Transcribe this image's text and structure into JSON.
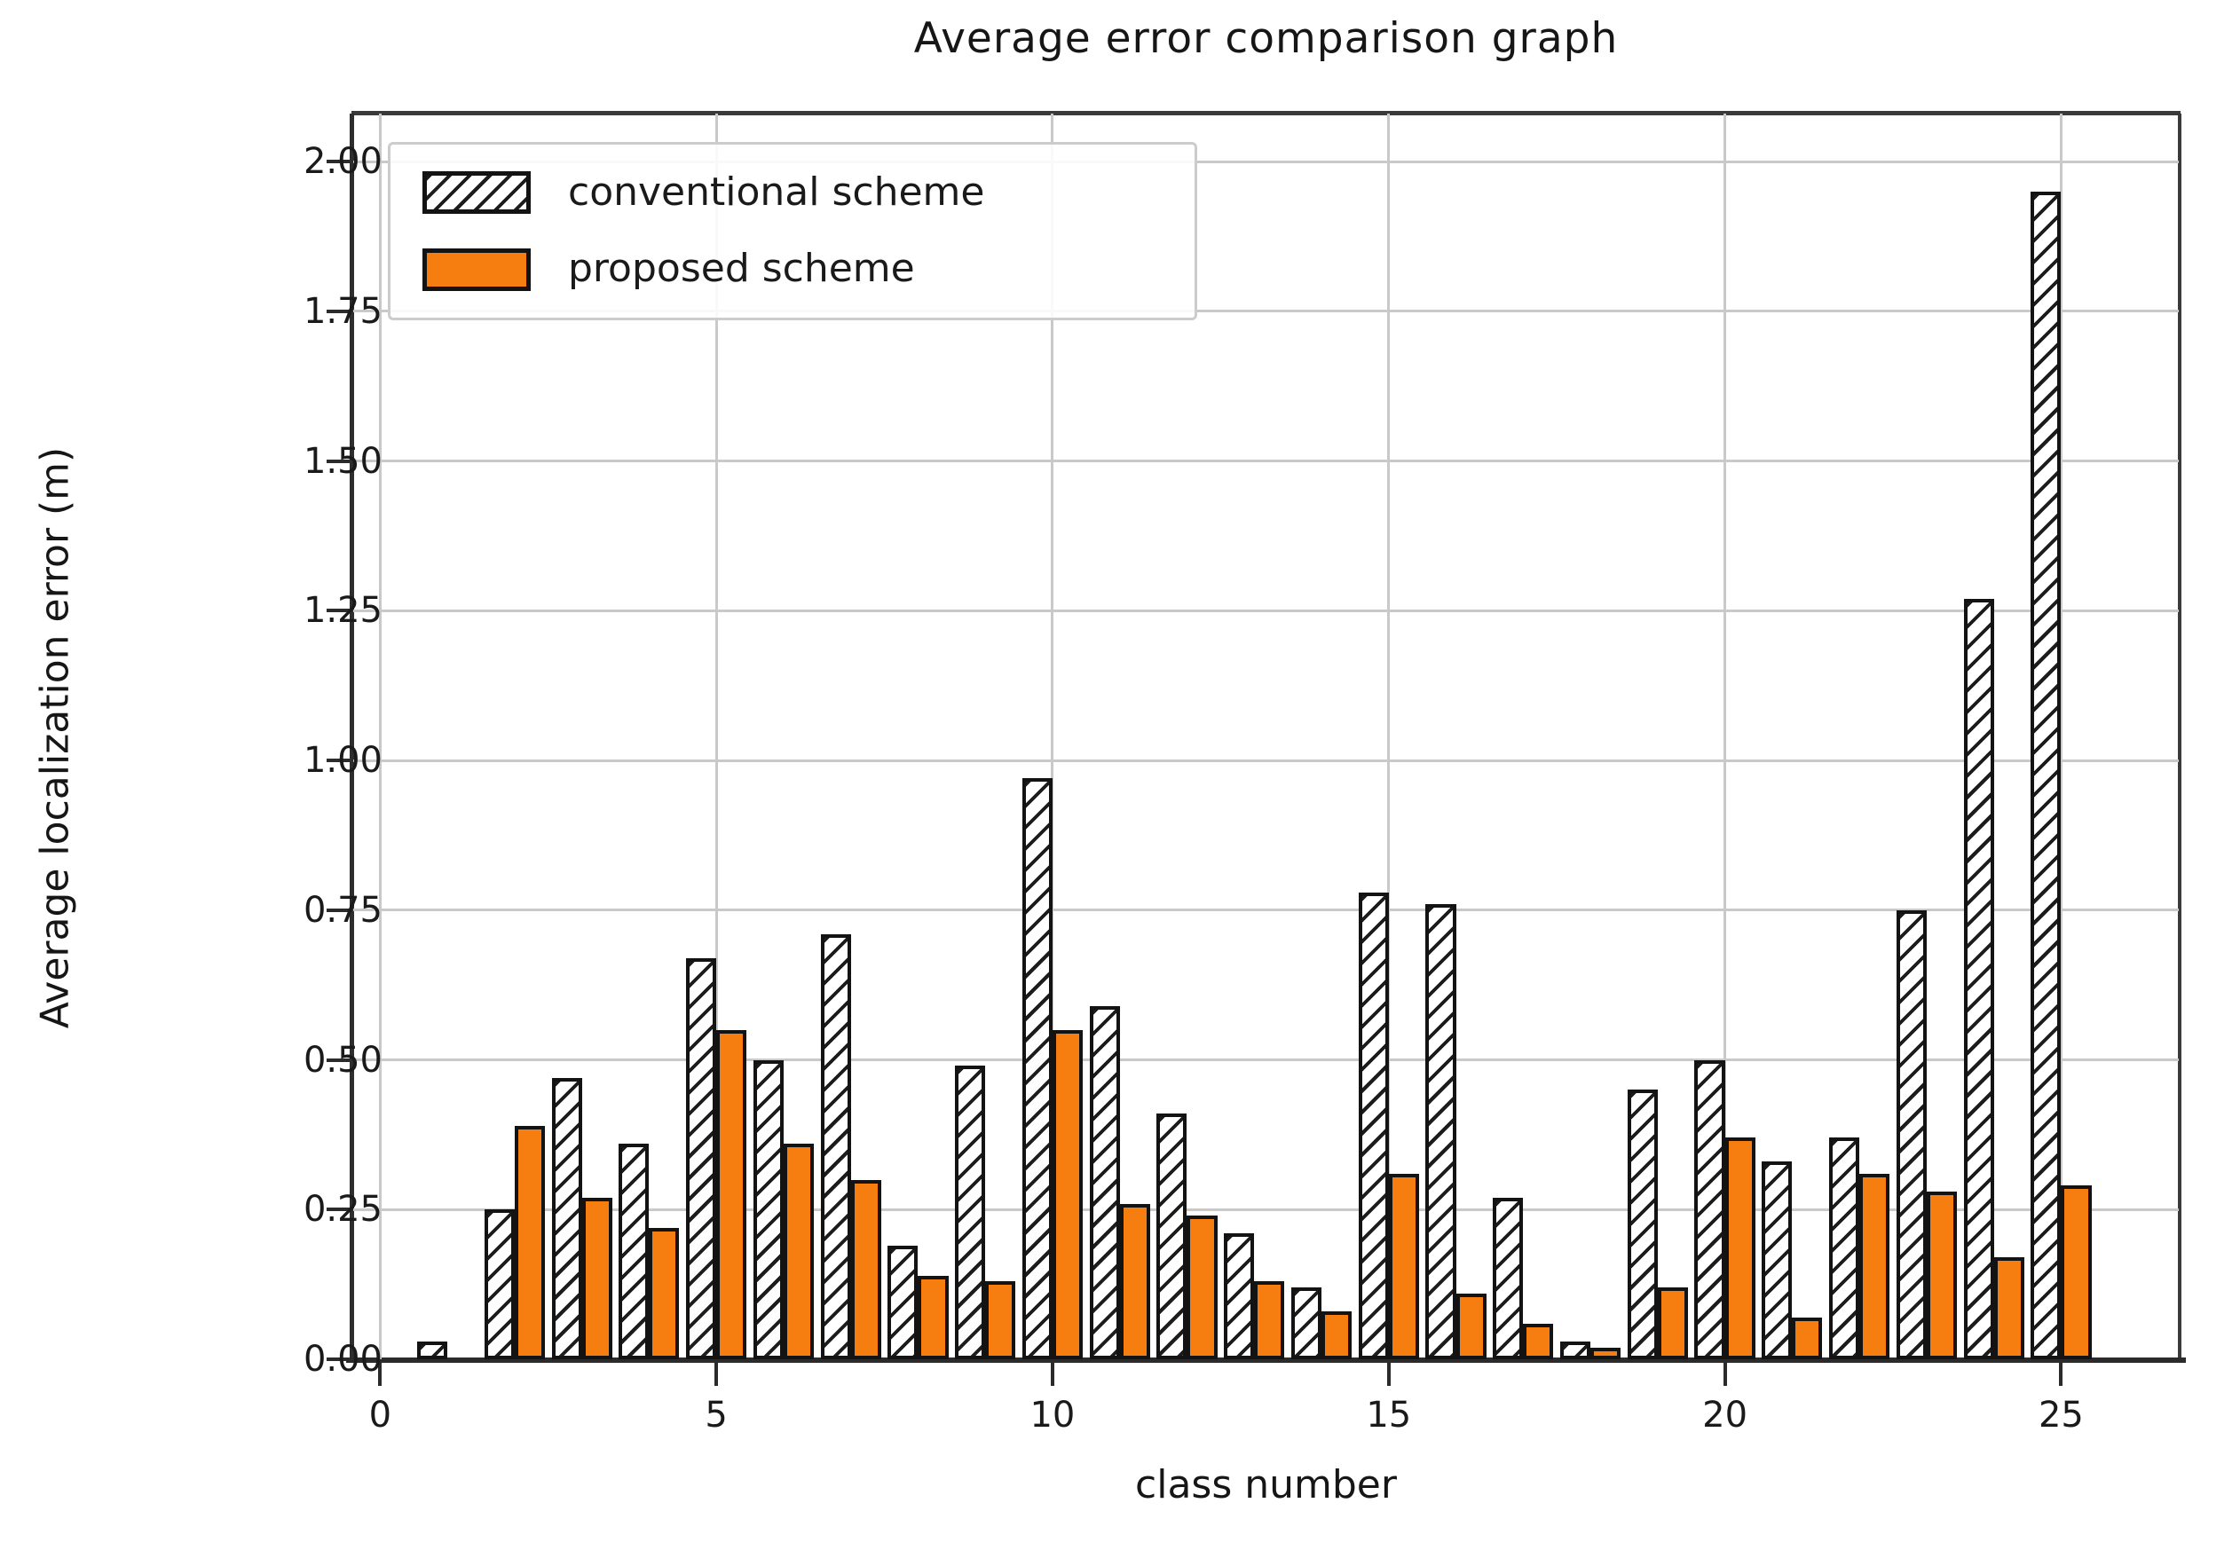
{
  "title": "Average error comparison graph",
  "legend": {
    "items": [
      {
        "label": "conventional scheme",
        "style": "hatched"
      },
      {
        "label": "proposed scheme",
        "style": "solid"
      }
    ]
  },
  "colors": {
    "proposed_orange": "#f67e10",
    "bar_edge": "#131313",
    "grid": "#c9c9c9",
    "spine": "#3a3a3a",
    "text": "#1a1a1a"
  },
  "chart_data": {
    "type": "bar",
    "title": "Average error comparison graph",
    "xlabel": "class number",
    "ylabel": "Average localization error (m)",
    "categories": [
      1,
      2,
      3,
      4,
      5,
      6,
      7,
      8,
      9,
      10,
      11,
      12,
      13,
      14,
      15,
      16,
      17,
      18,
      19,
      20,
      21,
      22,
      23,
      24,
      25
    ],
    "series": [
      {
        "name": "conventional scheme",
        "style": "hatched",
        "values": [
          0.03,
          0.25,
          0.47,
          0.36,
          0.67,
          0.5,
          0.71,
          0.19,
          0.49,
          0.97,
          0.59,
          0.41,
          0.21,
          0.12,
          0.78,
          0.76,
          0.27,
          0.03,
          0.45,
          0.5,
          0.33,
          0.37,
          0.75,
          1.27,
          1.95
        ]
      },
      {
        "name": "proposed scheme",
        "style": "solid",
        "values": [
          0.0,
          0.39,
          0.27,
          0.22,
          0.55,
          0.36,
          0.3,
          0.14,
          0.13,
          0.55,
          0.26,
          0.24,
          0.13,
          0.08,
          0.31,
          0.11,
          0.06,
          0.02,
          0.12,
          0.37,
          0.07,
          0.31,
          0.28,
          0.17,
          0.29
        ]
      }
    ],
    "ylim": [
      0,
      2.08
    ],
    "xlim": [
      -0.4,
      26.75
    ],
    "yticks": [
      0.0,
      0.25,
      0.5,
      0.75,
      1.0,
      1.25,
      1.5,
      1.75,
      2.0
    ],
    "ytick_labels": [
      "0.00",
      "0.25",
      "0.50",
      "0.75",
      "1.00",
      "1.25",
      "1.50",
      "1.75",
      "2.00"
    ],
    "xticks": [
      0,
      5,
      10,
      15,
      20,
      25
    ],
    "xtick_labels": [
      "0",
      "5",
      "10",
      "15",
      "20",
      "25"
    ],
    "bar_width": 0.45,
    "grid": true,
    "hatch": "//",
    "legend_position": "upper left"
  }
}
